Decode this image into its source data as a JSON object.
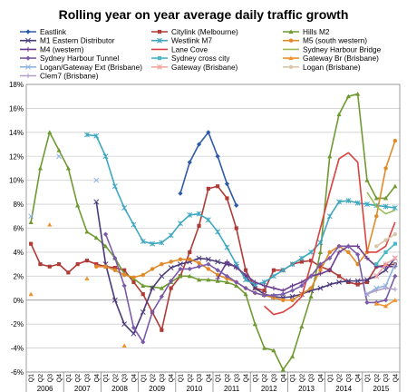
{
  "chart_data": {
    "type": "line",
    "title": "Rolling year on year average daily traffic growth",
    "ylim": [
      -0.06,
      0.18
    ],
    "yticks": [
      "-6%",
      "-4%",
      "-2%",
      "0%",
      "2%",
      "4%",
      "6%",
      "8%",
      "10%",
      "12%",
      "14%",
      "16%",
      "18%"
    ],
    "quarter_labels": [
      "Q1",
      "Q2",
      "Q3",
      "Q4",
      "Q1",
      "Q2",
      "Q3",
      "Q4",
      "Q1",
      "Q2",
      "Q3",
      "Q4",
      "Q1",
      "Q2",
      "Q3",
      "Q4",
      "Q1",
      "Q2",
      "Q3",
      "Q4",
      "Q1",
      "Q2",
      "Q3",
      "Q4",
      "Q1",
      "Q2",
      "Q3",
      "Q4",
      "Q1",
      "Q2",
      "Q3",
      "Q4",
      "Q1",
      "Q2",
      "Q3",
      "Q4",
      "Q1",
      "Q2",
      "Q3",
      "Q4"
    ],
    "years": [
      "2006",
      "2007",
      "2008",
      "2009",
      "2010",
      "2011",
      "2012",
      "2013",
      "2014",
      "2015"
    ],
    "grid": "horizontal",
    "legend_position": "top",
    "series": [
      {
        "name": "Eastlink",
        "color": "#2e5aa8",
        "marker": "diamond",
        "values": [
          null,
          null,
          null,
          null,
          null,
          null,
          null,
          null,
          null,
          null,
          null,
          null,
          null,
          null,
          null,
          null,
          0.089,
          0.115,
          0.13,
          0.14,
          0.12,
          0.097,
          0.079,
          null,
          null,
          null,
          null,
          null,
          null,
          null,
          null,
          null,
          null,
          null,
          null,
          null,
          null,
          null,
          null,
          null
        ]
      },
      {
        "name": "Citylink (Melbourne)",
        "color": "#b03a36",
        "marker": "square",
        "values": [
          0.047,
          0.03,
          0.028,
          0.03,
          0.023,
          0.03,
          0.033,
          0.03,
          0.028,
          0.027,
          0.025,
          0.015,
          0.005,
          -0.01,
          -0.025,
          0.01,
          0.02,
          0.04,
          0.062,
          0.093,
          0.095,
          0.085,
          0.06,
          0.025,
          0.01,
          0.008,
          0.025,
          0.025,
          0.03,
          0.032,
          0.033,
          0.028,
          0.025,
          0.02,
          0.015,
          0.013,
          0.015,
          0.028,
          0.029,
          0.03
        ]
      },
      {
        "name": "Hills M2",
        "color": "#6f9a31",
        "marker": "triangle",
        "values": [
          0.065,
          0.11,
          0.14,
          0.125,
          0.11,
          0.079,
          0.057,
          0.052,
          0.045,
          0.035,
          0.022,
          0.018,
          0.012,
          0.011,
          0.01,
          0.015,
          0.02,
          0.02,
          0.017,
          0.017,
          0.016,
          0.015,
          0.012,
          0.005,
          -0.02,
          -0.04,
          -0.042,
          -0.058,
          -0.047,
          -0.022,
          0.003,
          0.04,
          0.12,
          0.155,
          0.17,
          0.172,
          0.1,
          0.085,
          0.085,
          0.095
        ]
      },
      {
        "name": "M1 Eastern Distributor",
        "color": "#4a3a7a",
        "marker": "x",
        "values": [
          null,
          null,
          null,
          null,
          null,
          null,
          null,
          0.082,
          0.03,
          0.0,
          -0.02,
          -0.028,
          -0.01,
          0.01,
          0.02,
          0.027,
          0.03,
          0.032,
          0.035,
          0.034,
          0.032,
          0.03,
          0.028,
          0.02,
          0.01,
          0.005,
          0.003,
          0.002,
          0.003,
          0.005,
          0.008,
          0.01,
          0.013,
          0.015,
          0.016,
          0.016,
          0.017,
          0.02,
          0.025,
          0.035
        ]
      },
      {
        "name": "Westlink M7",
        "color": "#3fa7c1",
        "marker": "star",
        "values": [
          null,
          null,
          null,
          null,
          null,
          null,
          0.138,
          0.137,
          0.12,
          0.095,
          0.077,
          0.063,
          0.049,
          0.047,
          0.048,
          0.054,
          0.064,
          0.071,
          0.072,
          0.067,
          0.057,
          0.044,
          0.03,
          0.017,
          0.013,
          0.015,
          0.02,
          0.025,
          0.03,
          0.035,
          0.04,
          0.048,
          0.07,
          0.082,
          0.083,
          0.081,
          0.08,
          0.079,
          0.078,
          0.077
        ]
      },
      {
        "name": "M5 (south western)",
        "color": "#e08a2a",
        "marker": "circle",
        "values": [
          null,
          null,
          null,
          null,
          null,
          null,
          null,
          0.028,
          0.028,
          0.025,
          0.021,
          0.019,
          0.021,
          0.026,
          0.03,
          0.032,
          0.034,
          0.034,
          0.031,
          0.026,
          0.021,
          0.018,
          0.015,
          0.01,
          0.006,
          0.004,
          0.002,
          0.0,
          0.0,
          0.005,
          0.01,
          0.025,
          0.04,
          0.045,
          0.04,
          0.03,
          0.04,
          0.07,
          0.11,
          0.133
        ]
      },
      {
        "name": "M4 (western)",
        "color": "#6d3d8f",
        "marker": "plus",
        "values": [
          null,
          null,
          null,
          null,
          null,
          null,
          null,
          null,
          null,
          null,
          null,
          null,
          null,
          null,
          null,
          null,
          null,
          null,
          null,
          null,
          0.018,
          0.032,
          0.027,
          0.021,
          0.015,
          0.012,
          0.01,
          0.008,
          0.012,
          0.015,
          0.02,
          0.022,
          0.025,
          0.04,
          0.045,
          0.045,
          0.035,
          0.028,
          0.028,
          0.028
        ]
      },
      {
        "name": "Lane Cove",
        "color": "#d9423f",
        "marker": "none",
        "values": [
          null,
          null,
          null,
          null,
          null,
          null,
          null,
          null,
          null,
          null,
          null,
          null,
          null,
          null,
          null,
          null,
          null,
          null,
          null,
          null,
          null,
          null,
          null,
          null,
          null,
          -0.005,
          -0.012,
          -0.01,
          -0.005,
          0.003,
          0.03,
          0.06,
          0.09,
          0.118,
          0.123,
          0.115,
          0.04,
          0.04,
          0.045,
          0.065
        ]
      },
      {
        "name": "Sydney Harbour Bridge",
        "color": "#9abd5a",
        "marker": "none",
        "values": [
          null,
          null,
          null,
          null,
          null,
          null,
          null,
          null,
          null,
          null,
          null,
          null,
          null,
          null,
          null,
          null,
          null,
          null,
          null,
          null,
          null,
          null,
          null,
          null,
          null,
          null,
          null,
          null,
          null,
          null,
          null,
          null,
          null,
          null,
          null,
          null,
          0.09,
          0.078,
          0.072,
          0.075
        ]
      },
      {
        "name": "Sydney Harbour Tunnel",
        "color": "#7b5ba8",
        "marker": "diamond",
        "values": [
          null,
          null,
          null,
          null,
          null,
          null,
          null,
          null,
          0.055,
          0.035,
          0.012,
          -0.023,
          -0.035,
          -0.01,
          0.003,
          0.016,
          0.026,
          0.026,
          0.028,
          0.03,
          0.025,
          0.02,
          0.015,
          0.01,
          0.006,
          0.004,
          0.004,
          0.005,
          0.008,
          0.012,
          0.02,
          0.03,
          0.035,
          0.045,
          0.045,
          0.038,
          -0.002,
          -0.002,
          0.0,
          0.02
        ]
      },
      {
        "name": "Sydney cross city",
        "color": "#4bb8c4",
        "marker": "square",
        "values": [
          null,
          null,
          null,
          null,
          null,
          null,
          null,
          null,
          null,
          null,
          null,
          null,
          null,
          null,
          null,
          null,
          null,
          null,
          null,
          null,
          null,
          null,
          null,
          null,
          null,
          null,
          null,
          null,
          null,
          null,
          null,
          null,
          null,
          null,
          null,
          null,
          null,
          0.03,
          0.04,
          0.047
        ]
      },
      {
        "name": "Gateway Br (Brisbane)",
        "color": "#f0922e",
        "marker": "triangle",
        "values": [
          0.005,
          null,
          0.063,
          null,
          null,
          null,
          0.018,
          null,
          null,
          null,
          -0.038,
          null,
          null,
          null,
          null,
          null,
          null,
          null,
          null,
          null,
          null,
          null,
          null,
          null,
          null,
          null,
          null,
          null,
          null,
          null,
          null,
          null,
          null,
          null,
          null,
          null,
          null,
          -0.003,
          -0.005,
          0.0
        ]
      },
      {
        "name": "Logan/Gateway Ext (Brisbane)",
        "color": "#8fb4e0",
        "marker": "x",
        "values": [
          0.07,
          null,
          null,
          0.12,
          null,
          null,
          null,
          0.1,
          null,
          null,
          null,
          null,
          null,
          null,
          null,
          null,
          null,
          null,
          null,
          null,
          null,
          null,
          null,
          null,
          null,
          null,
          null,
          null,
          null,
          null,
          null,
          null,
          null,
          null,
          null,
          null,
          0.005,
          0.01,
          0.012,
          0.03
        ]
      },
      {
        "name": "Gateway (Brisbane)",
        "color": "#f2a6a4",
        "marker": "star",
        "values": [
          null,
          null,
          null,
          null,
          null,
          null,
          null,
          null,
          null,
          null,
          null,
          null,
          null,
          null,
          null,
          null,
          null,
          null,
          null,
          null,
          null,
          null,
          null,
          null,
          null,
          null,
          null,
          null,
          null,
          null,
          null,
          null,
          null,
          null,
          null,
          null,
          null,
          0.02,
          0.03,
          0.035
        ]
      },
      {
        "name": "Logan (Brisbane)",
        "color": "#d8c7a8",
        "marker": "circle",
        "values": [
          null,
          null,
          null,
          null,
          null,
          null,
          null,
          null,
          null,
          null,
          null,
          null,
          null,
          null,
          null,
          null,
          null,
          null,
          null,
          null,
          null,
          null,
          null,
          null,
          null,
          null,
          null,
          null,
          null,
          null,
          null,
          null,
          null,
          null,
          null,
          null,
          null,
          0.045,
          0.05,
          0.055
        ]
      },
      {
        "name": "Clem7 (Brisbane)",
        "color": "#b0a0c8",
        "marker": "plus",
        "values": [
          null,
          null,
          null,
          null,
          null,
          null,
          null,
          null,
          null,
          null,
          null,
          null,
          null,
          null,
          null,
          null,
          null,
          null,
          null,
          null,
          null,
          null,
          null,
          null,
          null,
          null,
          null,
          null,
          null,
          null,
          null,
          null,
          null,
          null,
          null,
          null,
          0.005,
          0.008,
          0.01,
          0.009
        ]
      }
    ]
  }
}
